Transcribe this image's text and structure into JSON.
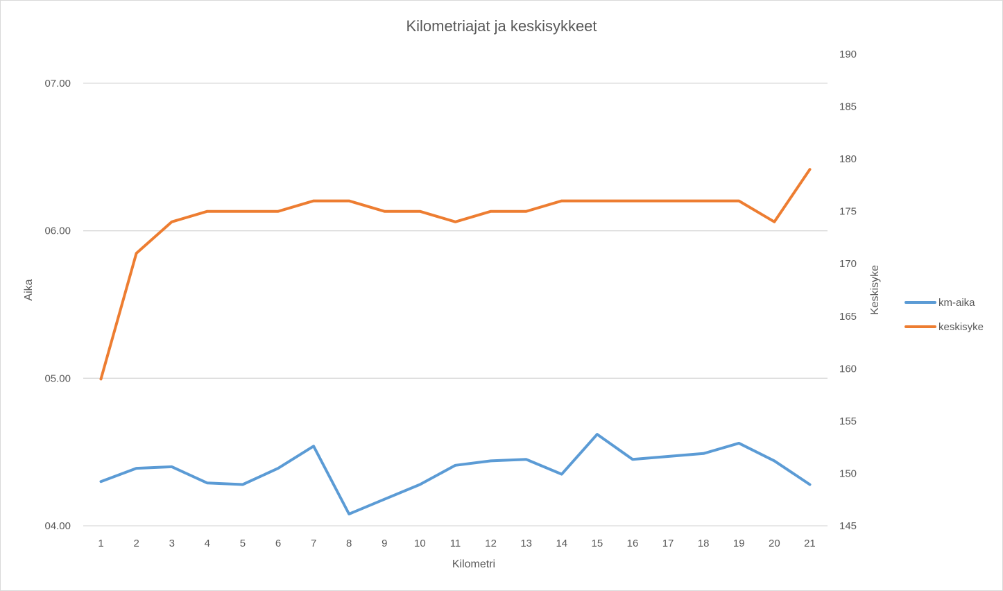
{
  "chart_data": {
    "type": "line",
    "title": "Kilometriajat ja keskisykkeet",
    "xlabel": "Kilometri",
    "ylabel_left": "Aika",
    "ylabel_right": "Keskisyke",
    "categories": [
      "1",
      "2",
      "3",
      "4",
      "5",
      "6",
      "7",
      "8",
      "9",
      "10",
      "11",
      "12",
      "13",
      "14",
      "15",
      "16",
      "17",
      "18",
      "19",
      "20",
      "21"
    ],
    "left_axis": {
      "ticks": [
        "04.00",
        "05.00",
        "06.00",
        "07.00"
      ],
      "min_minutes": 4.0,
      "max_minutes": 7.0
    },
    "right_axis": {
      "ticks": [
        "145",
        "150",
        "155",
        "160",
        "165",
        "170",
        "175",
        "180",
        "185",
        "190"
      ],
      "min": 145,
      "max": 190
    },
    "series": [
      {
        "name": "km-aika",
        "axis": "left",
        "color": "#5b9bd5",
        "values_minutes": [
          4.3,
          4.39,
          4.4,
          4.29,
          4.28,
          4.39,
          4.54,
          4.08,
          4.18,
          4.28,
          4.41,
          4.44,
          4.45,
          4.35,
          4.62,
          4.45,
          4.47,
          4.49,
          4.56,
          4.44,
          4.28
        ]
      },
      {
        "name": "keskisyke",
        "axis": "right",
        "color": "#ed7d31",
        "values": [
          159,
          171,
          174,
          175,
          175,
          175,
          176,
          176,
          175,
          175,
          174,
          175,
          175,
          176,
          176,
          176,
          176,
          176,
          176,
          174,
          179
        ]
      }
    ],
    "grid": true,
    "legend_position": "right"
  }
}
